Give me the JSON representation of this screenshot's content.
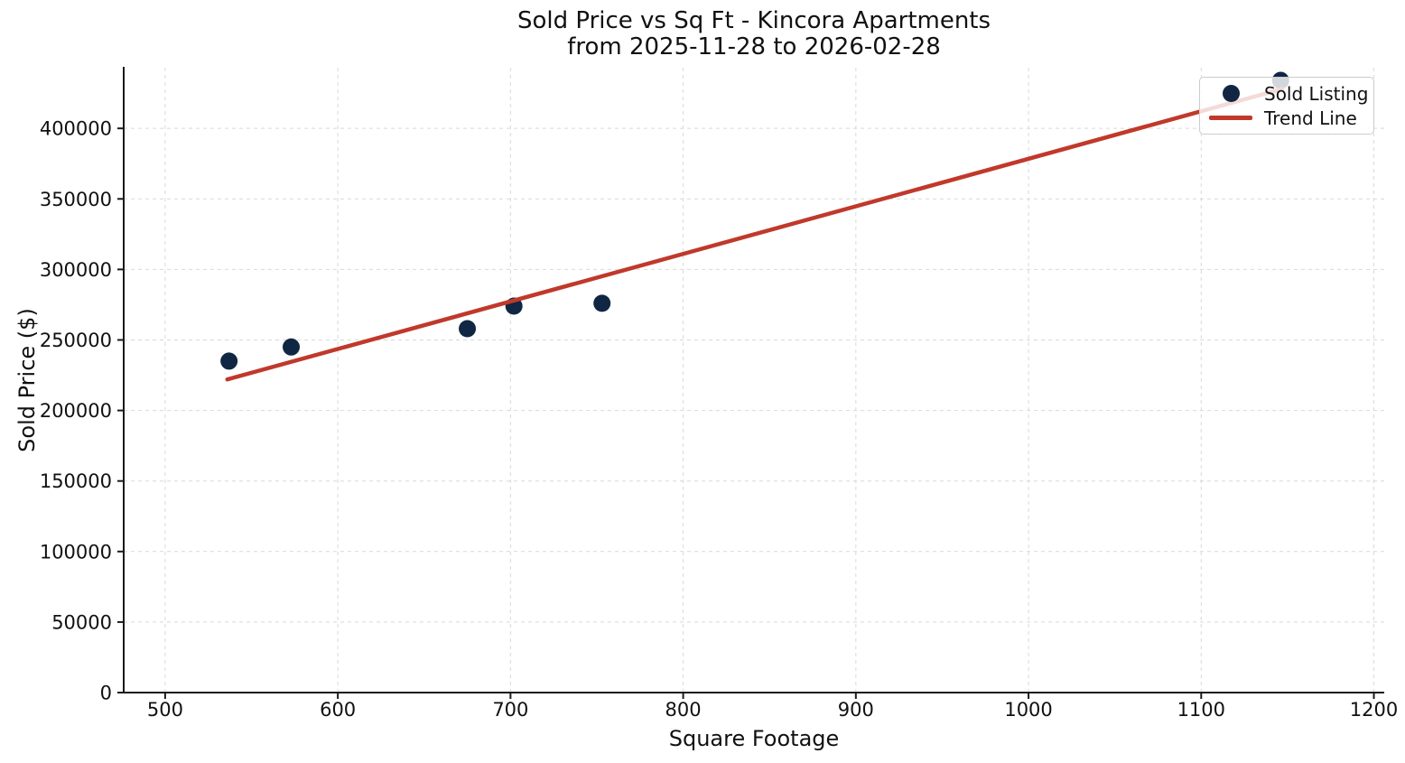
{
  "page": {
    "background": "#ffffff"
  },
  "chart_data": {
    "type": "scatter",
    "title": "Sold Price vs Sq Ft - Kincora Apartments",
    "subtitle": "from 2025-11-28 to 2026-02-28",
    "xlabel": "Square Footage",
    "ylabel": "Sold Price ($)",
    "xlim": [
      476,
      1206
    ],
    "ylim": [
      0,
      443000
    ],
    "xticks": [
      500,
      600,
      700,
      800,
      900,
      1000,
      1100,
      1200
    ],
    "yticks": [
      0,
      50000,
      100000,
      150000,
      200000,
      250000,
      300000,
      350000,
      400000
    ],
    "grid": true,
    "grid_style": "dashed",
    "legend_position": "upper right",
    "colors": {
      "scatter": "#102642",
      "trend": "#c0392b",
      "grid": "#d9d9d9",
      "spine": "#1a1a1a",
      "text": "#111111"
    },
    "series": [
      {
        "name": "Sold Listing",
        "type": "scatter",
        "color": "#102642",
        "points": [
          [
            537,
            235000
          ],
          [
            573,
            245000
          ],
          [
            675,
            258000
          ],
          [
            702,
            274000
          ],
          [
            753,
            276000
          ],
          [
            1146,
            434000
          ]
        ]
      },
      {
        "name": "Trend Line",
        "type": "line",
        "color": "#c0392b",
        "points": [
          [
            536,
            222000
          ],
          [
            1147,
            428000
          ]
        ]
      }
    ]
  }
}
